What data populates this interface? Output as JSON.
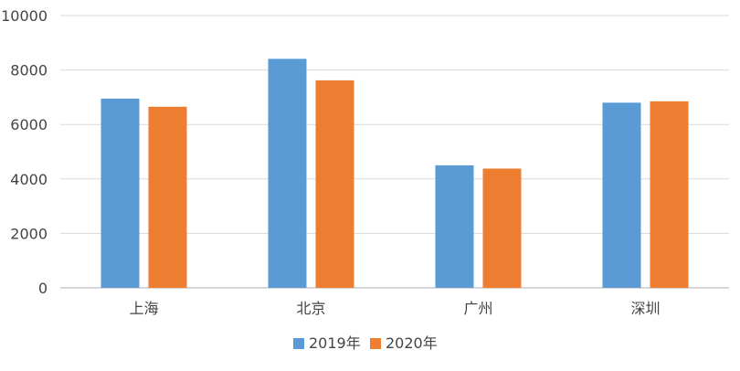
{
  "chart_data": {
    "type": "bar",
    "title": "",
    "xlabel": "",
    "ylabel": "",
    "categories": [
      "上海",
      "北京",
      "广州",
      "深圳"
    ],
    "series": [
      {
        "name": "2019年",
        "values": [
          6950,
          8410,
          4500,
          6800
        ],
        "color": "#5b9bd5"
      },
      {
        "name": "2020年",
        "values": [
          6650,
          7620,
          4380,
          6850
        ],
        "color": "#ed7d31"
      }
    ],
    "yticks": [
      "0",
      "2000",
      "4000",
      "6000",
      "8000",
      "10000"
    ],
    "ylim": [
      0,
      10000
    ],
    "grid": true,
    "legend": "bottom-center"
  }
}
